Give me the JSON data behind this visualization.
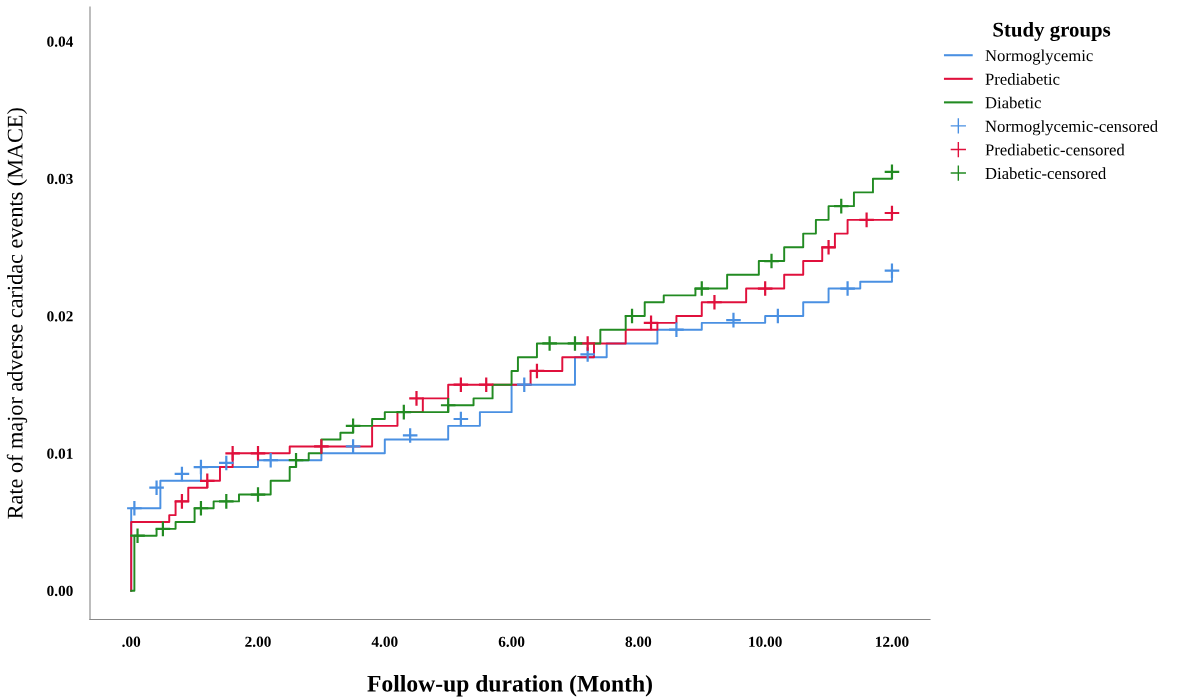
{
  "chart_data": {
    "type": "step",
    "xlabel": "Follow-up duration (Month)",
    "ylabel": "Rate of major adverse caridac events (MACE)",
    "legend_title": "Study groups",
    "legend": "top right",
    "grid": false,
    "xlim": [
      -0.65,
      12.6
    ],
    "xticks": [
      {
        "value": 0,
        "label": ".00"
      },
      {
        "value": 2,
        "label": "2.00"
      },
      {
        "value": 4,
        "label": "4.00"
      },
      {
        "value": 6,
        "label": "6.00"
      },
      {
        "value": 8,
        "label": "8.00"
      },
      {
        "value": 10,
        "label": "10.00"
      },
      {
        "value": 12,
        "label": "12.00"
      }
    ],
    "ylim": [
      -0.0021,
      0.0425
    ],
    "yticks": [
      {
        "value": 0,
        "label": "0.00"
      },
      {
        "value": 0.01,
        "label": "0.01"
      },
      {
        "value": 0.02,
        "label": "0.02"
      },
      {
        "value": 0.03,
        "label": "0.03"
      },
      {
        "value": 0.04,
        "label": "0.04"
      }
    ],
    "series": [
      {
        "name": "Normoglycemic",
        "marker": "none",
        "color": "#4a90e2",
        "x": [
          0,
          0,
          0.46,
          1.1,
          2.0,
          3.0,
          4.0,
          5.0,
          5.5,
          6.0,
          7.0,
          7.5,
          8.3,
          9.0,
          10.0,
          10.6,
          11.0,
          11.5,
          12.0
        ],
        "values": [
          0,
          0.006,
          0.008,
          0.009,
          0.0095,
          0.01,
          0.011,
          0.012,
          0.013,
          0.015,
          0.017,
          0.018,
          0.019,
          0.0195,
          0.02,
          0.021,
          0.022,
          0.0225,
          0.0233
        ]
      },
      {
        "name": "Prediabetic",
        "marker": "none",
        "color": "#e0103c",
        "x": [
          0,
          0,
          0.6,
          0.7,
          0.9,
          1.2,
          1.4,
          1.6,
          2.5,
          3.8,
          4.2,
          4.6,
          5.0,
          6.3,
          6.8,
          7.3,
          7.8,
          8.3,
          8.6,
          9.0,
          9.7,
          10.3,
          10.6,
          10.9,
          11.1,
          11.3,
          12.0
        ],
        "values": [
          0,
          0.005,
          0.0055,
          0.0065,
          0.0075,
          0.008,
          0.009,
          0.01,
          0.0105,
          0.012,
          0.013,
          0.014,
          0.015,
          0.016,
          0.017,
          0.018,
          0.019,
          0.0195,
          0.02,
          0.021,
          0.022,
          0.023,
          0.024,
          0.025,
          0.026,
          0.027,
          0.0275
        ]
      },
      {
        "name": "Diabetic",
        "marker": "none",
        "color": "#228b22",
        "x": [
          0,
          0.05,
          0.4,
          0.7,
          1.0,
          1.3,
          1.7,
          2.2,
          2.5,
          2.6,
          2.8,
          3.0,
          3.3,
          3.5,
          3.8,
          4.0,
          5.0,
          5.4,
          5.7,
          6.0,
          6.1,
          6.4,
          7.4,
          7.8,
          8.1,
          8.4,
          8.9,
          9.4,
          9.9,
          10.3,
          10.6,
          10.8,
          11.0,
          11.4,
          11.7,
          12.0
        ],
        "values": [
          0,
          0.004,
          0.0045,
          0.005,
          0.006,
          0.0065,
          0.007,
          0.008,
          0.009,
          0.0095,
          0.01,
          0.011,
          0.0115,
          0.012,
          0.0125,
          0.013,
          0.0135,
          0.014,
          0.015,
          0.016,
          0.017,
          0.018,
          0.019,
          0.02,
          0.021,
          0.0215,
          0.022,
          0.023,
          0.024,
          0.025,
          0.026,
          0.027,
          0.028,
          0.029,
          0.03,
          0.0305
        ]
      },
      {
        "name": "Normoglycemic-censored",
        "type": "scatter",
        "marker": "cross",
        "color": "#4a90e2",
        "x": [
          0.05,
          0.4,
          0.8,
          1.1,
          1.5,
          2.2,
          3.5,
          4.4,
          5.2,
          6.2,
          7.2,
          8.6,
          9.5,
          10.2,
          11.3,
          12.0
        ],
        "values": [
          0.006,
          0.0075,
          0.0085,
          0.009,
          0.0093,
          0.0095,
          0.0105,
          0.0113,
          0.0125,
          0.015,
          0.0172,
          0.019,
          0.0197,
          0.02,
          0.022,
          0.0233
        ]
      },
      {
        "name": "Prediabetic-censored",
        "type": "scatter",
        "marker": "cross",
        "color": "#e0103c",
        "x": [
          0.8,
          1.2,
          1.6,
          2.0,
          3.0,
          4.5,
          5.2,
          5.6,
          6.4,
          7.2,
          8.2,
          9.2,
          10.0,
          11.0,
          11.6,
          12.0
        ],
        "values": [
          0.0065,
          0.008,
          0.01,
          0.01,
          0.0105,
          0.014,
          0.015,
          0.015,
          0.016,
          0.018,
          0.0195,
          0.021,
          0.022,
          0.025,
          0.027,
          0.0275
        ]
      },
      {
        "name": "Diabetic-censored",
        "type": "scatter",
        "marker": "cross",
        "color": "#228b22",
        "x": [
          0.1,
          0.5,
          1.1,
          1.5,
          2.0,
          2.6,
          3.5,
          4.3,
          5.0,
          6.6,
          7.0,
          7.9,
          9.0,
          10.1,
          11.2,
          12.0
        ],
        "values": [
          0.004,
          0.0045,
          0.006,
          0.0065,
          0.007,
          0.0095,
          0.012,
          0.013,
          0.0135,
          0.018,
          0.018,
          0.02,
          0.022,
          0.024,
          0.028,
          0.0305
        ]
      }
    ]
  }
}
